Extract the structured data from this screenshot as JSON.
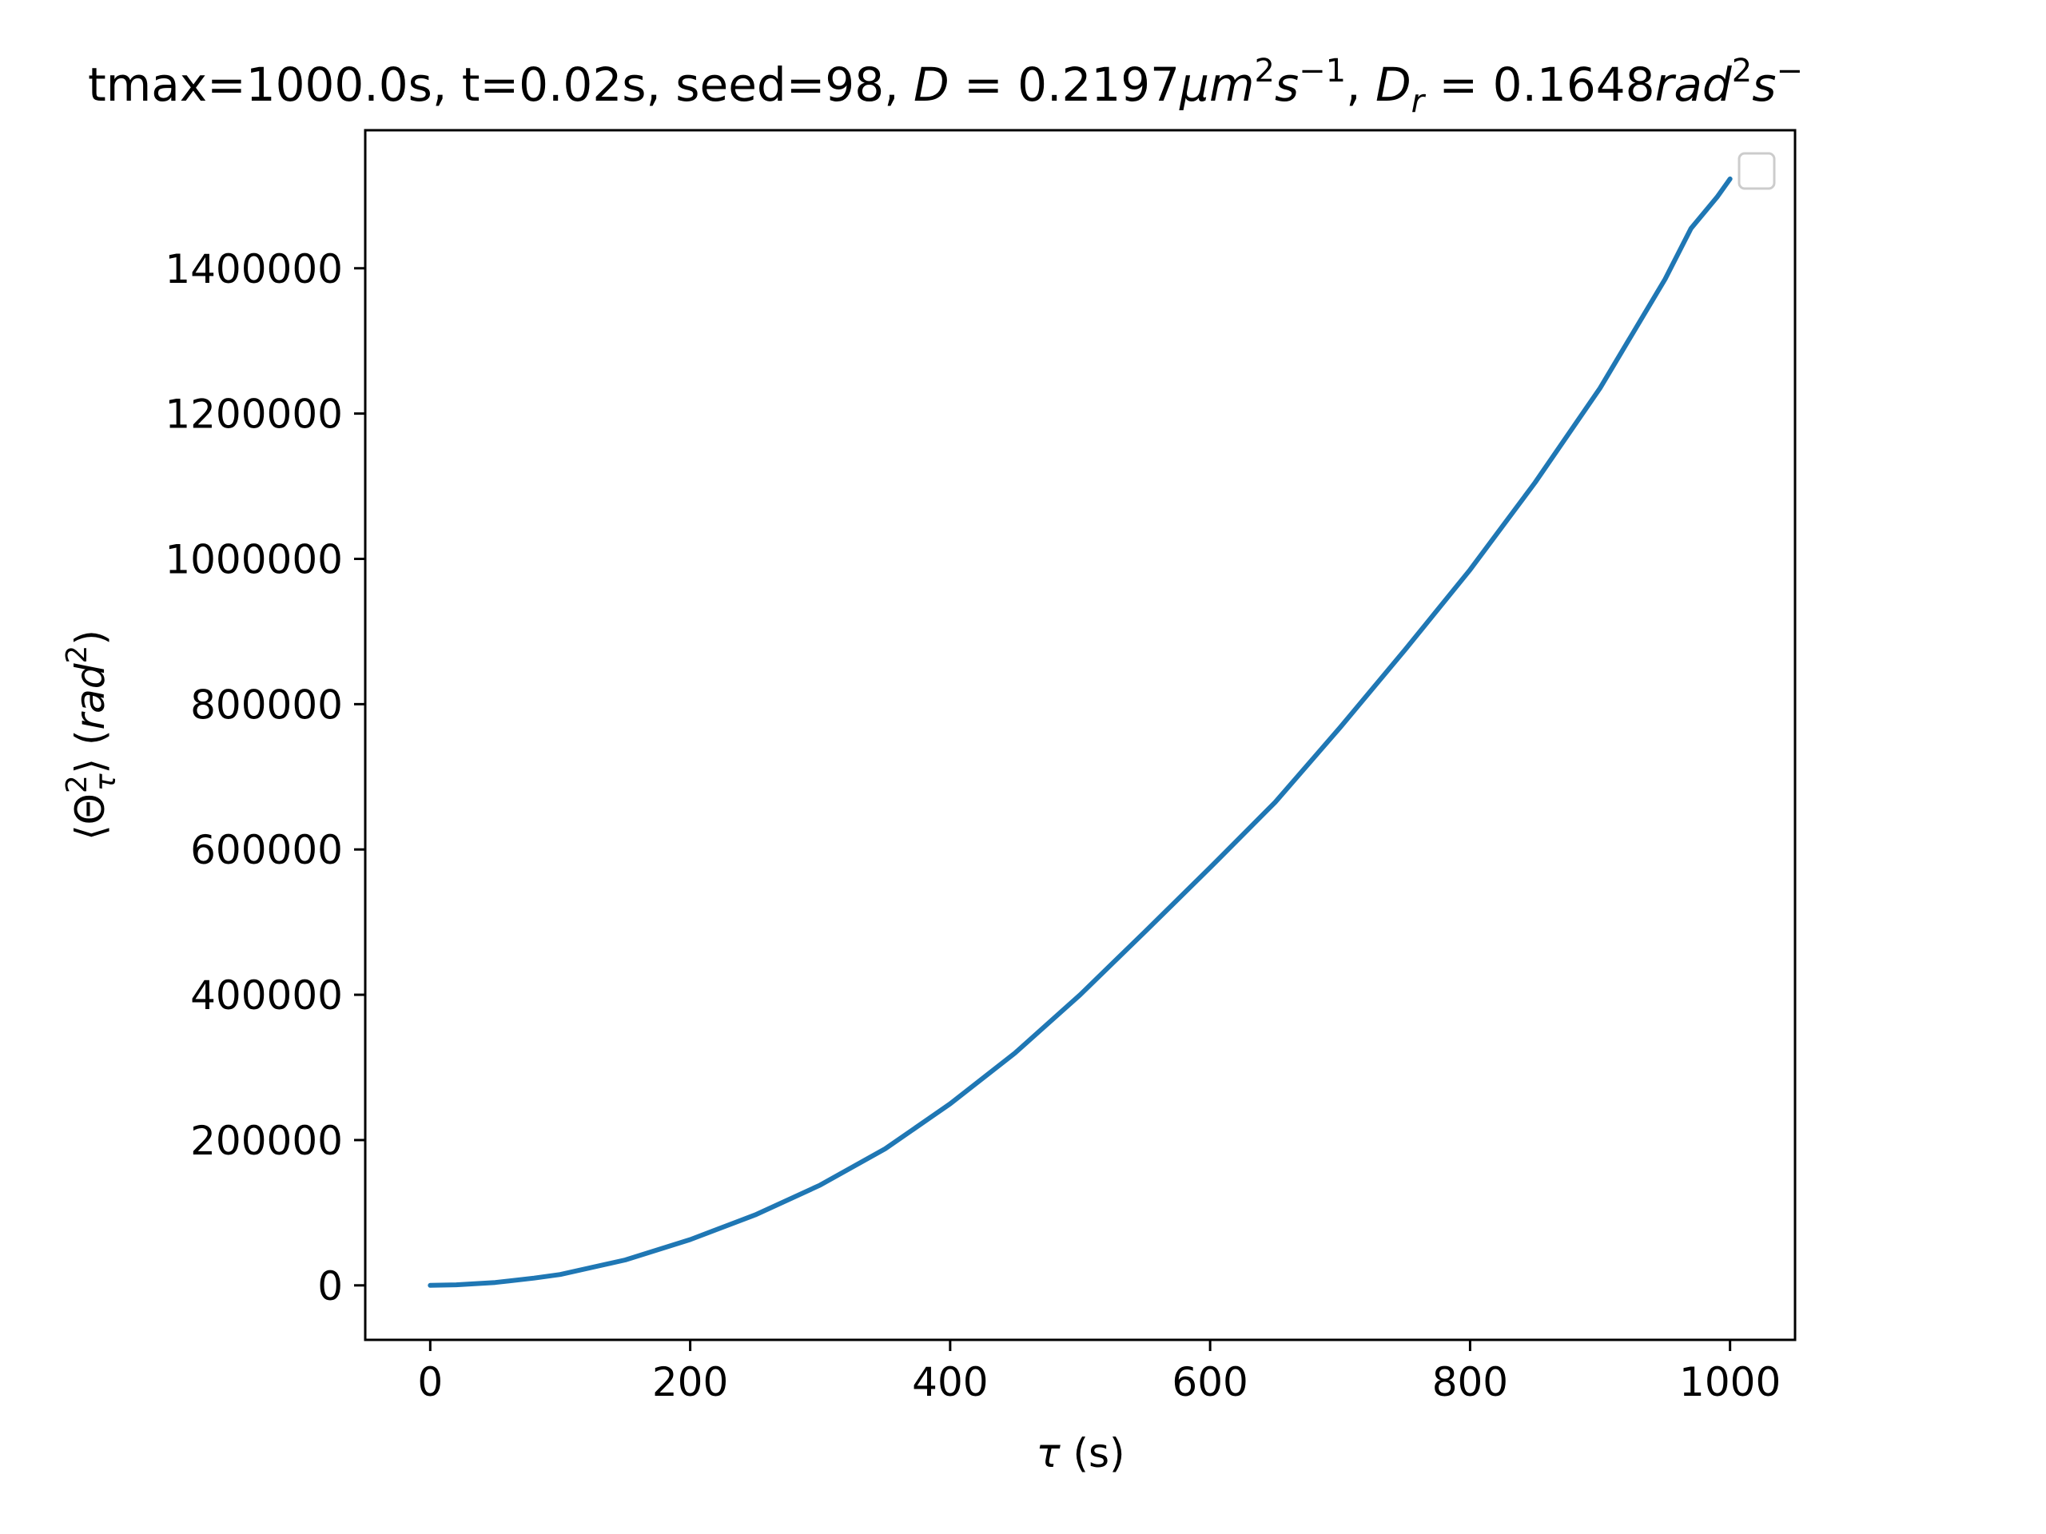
{
  "chart_data": {
    "type": "line",
    "title_parts": {
      "plain": "tmax=1000.0s, t=0.02s, seed=98, ",
      "d_sym": "D",
      "d_eq": " = 0.2197",
      "d_unit": "μm",
      "d_exp1": "2",
      "d_s": "s",
      "d_exp2": "−1",
      "sep": ", ",
      "dr_sym": "D",
      "dr_sub": "r",
      "dr_eq": " = 0.1648",
      "dr_unit": "rad",
      "dr_exp1": "2",
      "dr_s": "s",
      "dr_exp2": "−"
    },
    "xlabel_parts": {
      "sym": "τ",
      "rest": " (s)"
    },
    "ylabel_parts": {
      "lang": "⟨",
      "theta": "Θ",
      "sup": "2",
      "sub": "τ",
      "rang": "⟩ (",
      "unit": "rad",
      "unit_sup": "2",
      "close": ")"
    },
    "xlim": [
      -50,
      1050
    ],
    "ylim": [
      -75000,
      1590000
    ],
    "xticks": [
      0,
      200,
      400,
      600,
      800,
      1000
    ],
    "xtick_labels": [
      "0",
      "200",
      "400",
      "600",
      "800",
      "1000"
    ],
    "yticks": [
      0,
      200000,
      400000,
      600000,
      800000,
      1000000,
      1200000,
      1400000
    ],
    "ytick_labels": [
      "0",
      "200000",
      "400000",
      "600000",
      "800000",
      "1000000",
      "1200000",
      "1400000"
    ],
    "grid": false,
    "legend": {
      "location": "upper right",
      "entries": []
    },
    "series": [
      {
        "color": "#1f77b4",
        "x": [
          0,
          20,
          50,
          80,
          100,
          150,
          200,
          250,
          300,
          350,
          400,
          450,
          500,
          550,
          600,
          650,
          700,
          750,
          800,
          850,
          900,
          925,
          950,
          970,
          990,
          1000
        ],
        "y": [
          0,
          800,
          4000,
          10000,
          15000,
          35000,
          63000,
          97000,
          138000,
          188000,
          250000,
          320000,
          400000,
          487000,
          575000,
          665000,
          768000,
          875000,
          985000,
          1105000,
          1235000,
          1310000,
          1385000,
          1455000,
          1498000,
          1523000
        ]
      }
    ]
  }
}
